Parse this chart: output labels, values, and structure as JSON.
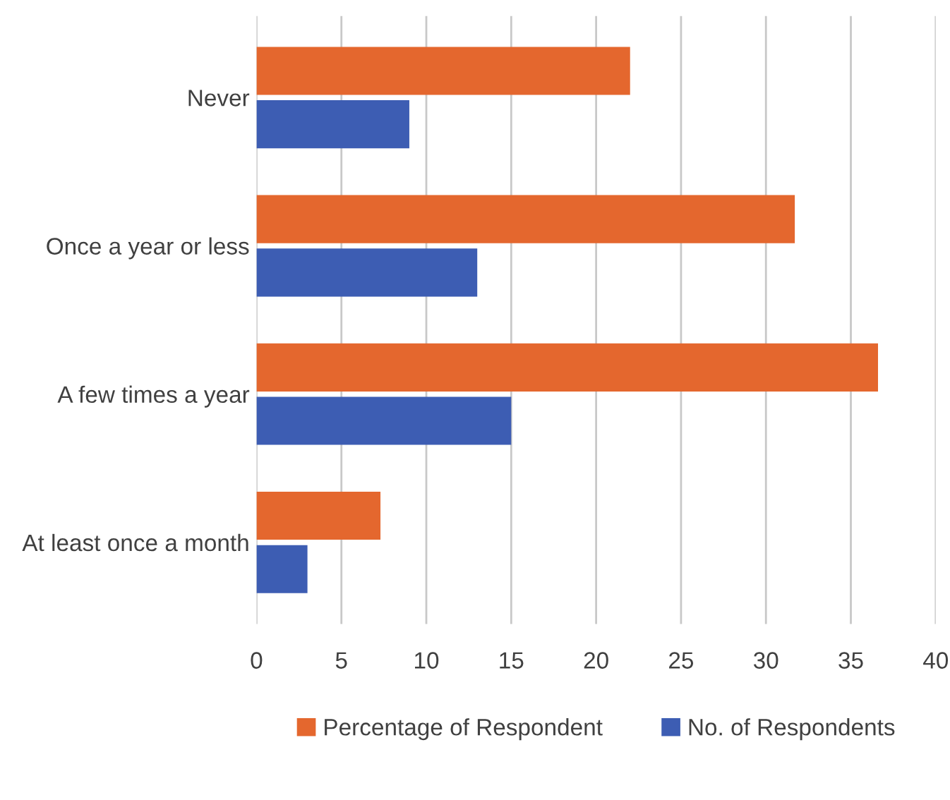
{
  "chart_data": {
    "type": "bar",
    "orientation": "horizontal",
    "categories": [
      "Never",
      "Once a year or less",
      "A few times a year",
      "At least once a month"
    ],
    "series": [
      {
        "name": "Percentage of Respondent",
        "color": "#e4672e",
        "values": [
          22.0,
          31.7,
          36.6,
          7.3
        ]
      },
      {
        "name": "No. of Respondents",
        "color": "#3d5db3",
        "values": [
          9,
          13,
          15,
          3
        ]
      }
    ],
    "xlim": [
      0,
      40
    ],
    "xticks": [
      0,
      5,
      10,
      15,
      20,
      25,
      30,
      35,
      40
    ],
    "grid": "x",
    "legend": "bottom"
  }
}
